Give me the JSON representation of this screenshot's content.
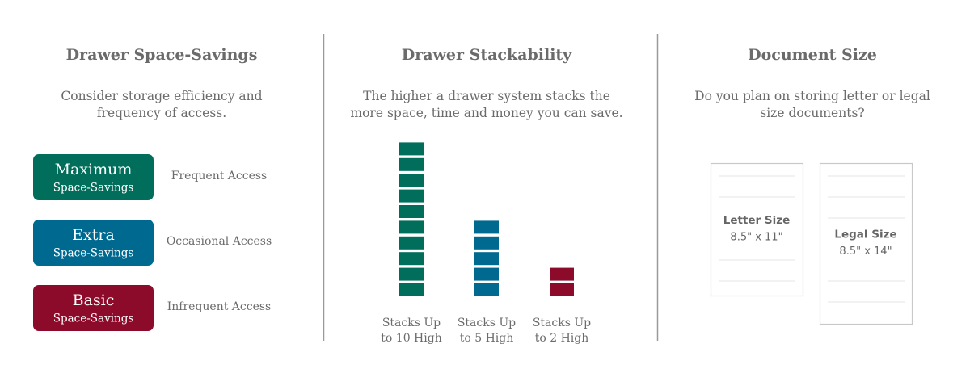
{
  "sections": [
    {
      "title": "Drawer Space-Savings",
      "subtitle": [
        "Consider storage efficiency and",
        "frequency of access."
      ],
      "options": [
        {
          "name": "Maximum",
          "detail": "Space-Savings",
          "access": "Frequent Access",
          "color": "#006e5a"
        },
        {
          "name": "Extra",
          "detail": "Space-Savings",
          "access": "Occasional Access",
          "color": "#006990"
        },
        {
          "name": "Basic",
          "detail": "Space-Savings",
          "access": "Infrequent Access",
          "color": "#8c0b2a"
        }
      ]
    },
    {
      "title": "Drawer Stackability",
      "subtitle": [
        "The higher a drawer system stacks the",
        "more space, time and money you can save."
      ],
      "stacks": [
        {
          "label": [
            "Stacks Up",
            "to 10 High"
          ],
          "high": 10,
          "color": "#006e5a"
        },
        {
          "label": [
            "Stacks Up",
            "to 5 High"
          ],
          "high": 5,
          "color": "#006990"
        },
        {
          "label": [
            "Stacks Up",
            "to 2 High"
          ],
          "high": 2,
          "color": "#8c0b2a"
        }
      ]
    },
    {
      "title": "Document Size",
      "subtitle": [
        "Do you plan on storing letter or legal",
        "size documents?"
      ],
      "documents": [
        {
          "name": "Letter Size",
          "size": "8.5\" x 11\""
        },
        {
          "name": "Legal Size",
          "size": "8.5\" x 14\""
        }
      ]
    }
  ]
}
